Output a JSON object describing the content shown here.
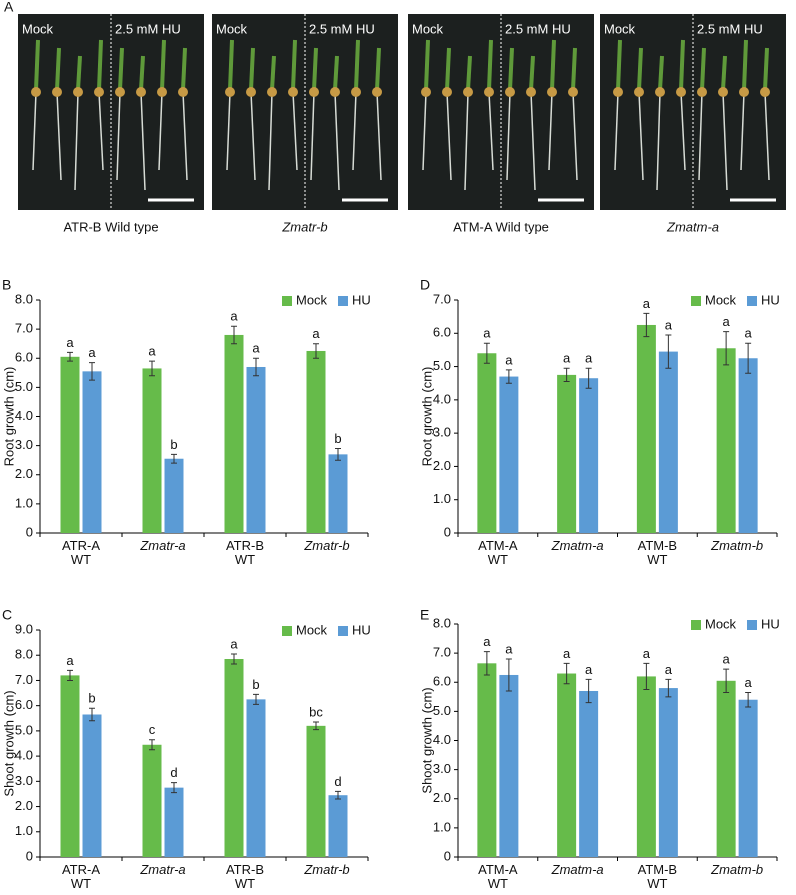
{
  "panel_a": {
    "label": "A",
    "photos": [
      {
        "left": "Mock",
        "right": "2.5 mM HU",
        "caption": "ATR-B Wild type",
        "caption_italic": false
      },
      {
        "left": "Mock",
        "right": "2.5 mM HU",
        "caption": "Zmatr-b",
        "caption_italic": true
      },
      {
        "left": "Mock",
        "right": "2.5 mM HU",
        "caption": "ATM-A Wild type",
        "caption_italic": false
      },
      {
        "left": "Mock",
        "right": "2.5 mM HU",
        "caption": "Zmatm-a",
        "caption_italic": true
      }
    ]
  },
  "chart_data": [
    {
      "type": "bar",
      "panel": "B",
      "ylabel": "Root growth (cm)",
      "categories": [
        "ATR-A\nWT",
        "Zmatr-a",
        "ATR-B\nWT",
        "Zmatr-b"
      ],
      "category_italic": [
        false,
        true,
        false,
        true
      ],
      "series": [
        {
          "name": "Mock",
          "color": "#66bb4a",
          "values": [
            6.05,
            5.65,
            6.8,
            6.25
          ],
          "errors": [
            0.15,
            0.25,
            0.3,
            0.25
          ],
          "letters": [
            "a",
            "a",
            "a",
            "a"
          ]
        },
        {
          "name": "HU",
          "color": "#5b9bd5",
          "values": [
            5.55,
            2.55,
            5.7,
            2.7
          ],
          "errors": [
            0.3,
            0.15,
            0.3,
            0.2
          ],
          "letters": [
            "a",
            "b",
            "a",
            "b"
          ]
        }
      ],
      "ylim": [
        0,
        8
      ],
      "yticks": [
        0,
        {
          "value": 1,
          "label": "1.0"
        },
        {
          "value": 2,
          "label": "2.0"
        },
        {
          "value": 3,
          "label": "3.0"
        },
        {
          "value": 4,
          "label": "4.0"
        },
        {
          "value": 5,
          "label": "5.0"
        },
        {
          "value": 6,
          "label": "6.0"
        },
        {
          "value": 7,
          "label": "7.0"
        },
        {
          "value": 8,
          "label": "8.0"
        }
      ],
      "legend": "top-right"
    },
    {
      "type": "bar",
      "panel": "D",
      "ylabel": "Root growth (cm)",
      "categories": [
        "ATM-A\nWT",
        "Zmatm-a",
        "ATM-B\nWT",
        "Zmatm-b"
      ],
      "category_italic": [
        false,
        true,
        false,
        true
      ],
      "series": [
        {
          "name": "Mock",
          "color": "#66bb4a",
          "values": [
            5.4,
            4.75,
            6.25,
            5.55
          ],
          "errors": [
            0.3,
            0.2,
            0.35,
            0.5
          ],
          "letters": [
            "a",
            "a",
            "a",
            "a"
          ]
        },
        {
          "name": "HU",
          "color": "#5b9bd5",
          "values": [
            4.7,
            4.65,
            5.45,
            5.25
          ],
          "errors": [
            0.2,
            0.3,
            0.5,
            0.45
          ],
          "letters": [
            "a",
            "a",
            "a",
            "a"
          ]
        }
      ],
      "ylim": [
        0,
        7
      ],
      "yticks": [
        0,
        {
          "value": 1,
          "label": "1.0"
        },
        {
          "value": 2,
          "label": "2.0"
        },
        {
          "value": 3,
          "label": "3.0"
        },
        {
          "value": 4,
          "label": "4.0"
        },
        {
          "value": 5,
          "label": "5.0"
        },
        {
          "value": 6,
          "label": "6.0"
        },
        {
          "value": 7,
          "label": "7.0"
        }
      ],
      "legend": "top-right"
    },
    {
      "type": "bar",
      "panel": "C",
      "ylabel": "Shoot growth (cm)",
      "categories": [
        "ATR-A\nWT",
        "Zmatr-a",
        "ATR-B\nWT",
        "Zmatr-b"
      ],
      "category_italic": [
        false,
        true,
        false,
        true
      ],
      "series": [
        {
          "name": "Mock",
          "color": "#66bb4a",
          "values": [
            7.2,
            4.45,
            7.85,
            5.2
          ],
          "errors": [
            0.2,
            0.2,
            0.2,
            0.15
          ],
          "letters": [
            "a",
            "c",
            "a",
            "bc"
          ]
        },
        {
          "name": "HU",
          "color": "#5b9bd5",
          "values": [
            5.65,
            2.75,
            6.25,
            2.45
          ],
          "errors": [
            0.25,
            0.2,
            0.2,
            0.15
          ],
          "letters": [
            "b",
            "d",
            "b",
            "d"
          ]
        }
      ],
      "ylim": [
        0,
        9
      ],
      "yticks": [
        0,
        {
          "value": 1,
          "label": "1.0"
        },
        {
          "value": 2,
          "label": "2.0"
        },
        {
          "value": 3,
          "label": "3.0"
        },
        {
          "value": 4,
          "label": "4.0"
        },
        {
          "value": 5,
          "label": "5.0"
        },
        {
          "value": 6,
          "label": "6.0"
        },
        {
          "value": 7,
          "label": "7.0"
        },
        {
          "value": 8,
          "label": "8.0"
        },
        {
          "value": 9,
          "label": "9.0"
        }
      ],
      "legend": "top-right"
    },
    {
      "type": "bar",
      "panel": "E",
      "ylabel": "Shoot growth (cm)",
      "categories": [
        "ATM-A\nWT",
        "Zmatm-a",
        "ATM-B\nWT",
        "Zmatm-b"
      ],
      "category_italic": [
        false,
        true,
        false,
        true
      ],
      "series": [
        {
          "name": "Mock",
          "color": "#66bb4a",
          "values": [
            6.65,
            6.3,
            6.2,
            6.05
          ],
          "errors": [
            0.4,
            0.35,
            0.45,
            0.4
          ],
          "letters": [
            "a",
            "a",
            "a",
            "a"
          ]
        },
        {
          "name": "HU",
          "color": "#5b9bd5",
          "values": [
            6.25,
            5.7,
            5.8,
            5.4
          ],
          "errors": [
            0.55,
            0.4,
            0.3,
            0.25
          ],
          "letters": [
            "a",
            "a",
            "a",
            "a"
          ]
        }
      ],
      "ylim": [
        0,
        8
      ],
      "yticks": [
        0,
        {
          "value": 1,
          "label": "1.0"
        },
        {
          "value": 2,
          "label": "2.0"
        },
        {
          "value": 3,
          "label": "3.0"
        },
        {
          "value": 4,
          "label": "4.0"
        },
        {
          "value": 5,
          "label": "5.0"
        },
        {
          "value": 6,
          "label": "6.0"
        },
        {
          "value": 7,
          "label": "7.0"
        },
        {
          "value": 8,
          "label": "8.0"
        }
      ],
      "legend": "top-right"
    }
  ]
}
